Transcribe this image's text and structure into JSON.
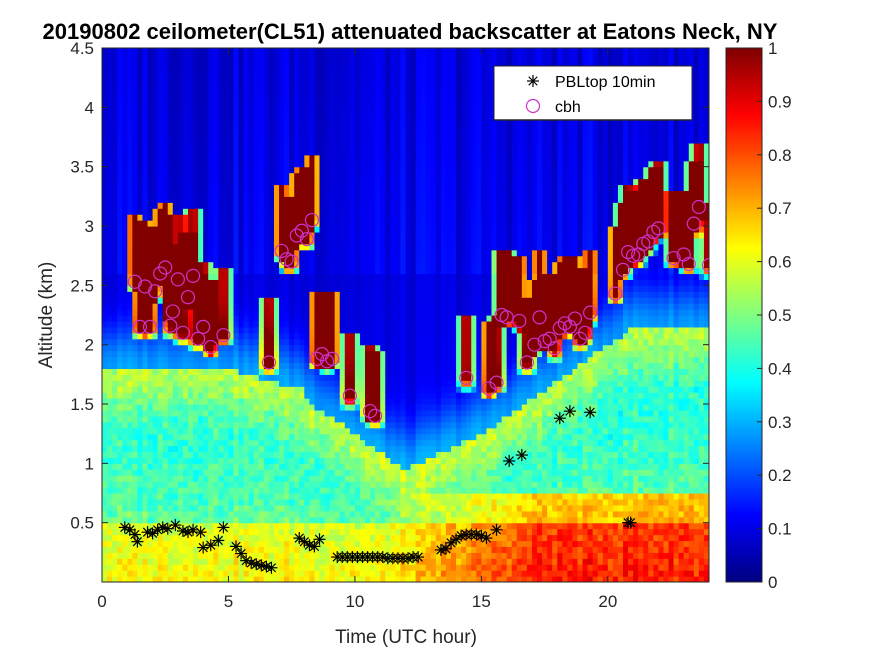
{
  "chart_data": {
    "type": "heatmap",
    "title": "20190802 ceilometer(CL51) attenuated backscatter at Eatons Neck, NY",
    "xlabel": "Time (UTC hour)",
    "ylabel": "Altitude (km)",
    "xlim": [
      0,
      24
    ],
    "ylim": [
      0,
      4.5
    ],
    "x_ticks": [
      "0",
      "5",
      "10",
      "15",
      "20"
    ],
    "y_ticks": [
      "0.5",
      "1",
      "1.5",
      "2",
      "2.5",
      "3",
      "3.5",
      "4",
      "4.5"
    ],
    "colorbar": {
      "range": [
        0,
        1
      ],
      "colormap": "jet",
      "ticks": [
        "0",
        "0.1",
        "0.2",
        "0.3",
        "0.4",
        "0.5",
        "0.6",
        "0.7",
        "0.8",
        "0.9",
        "1"
      ]
    },
    "legend": {
      "position": "top-right"
    },
    "series": [
      {
        "name": "PBLtop 10min",
        "marker": "asterisk",
        "color": "#000000",
        "points": [
          [
            0.9,
            0.46
          ],
          [
            1.1,
            0.44
          ],
          [
            1.3,
            0.4
          ],
          [
            1.4,
            0.34
          ],
          [
            1.8,
            0.42
          ],
          [
            2.0,
            0.41
          ],
          [
            2.2,
            0.44
          ],
          [
            2.4,
            0.46
          ],
          [
            2.6,
            0.45
          ],
          [
            2.9,
            0.48
          ],
          [
            3.2,
            0.43
          ],
          [
            3.4,
            0.42
          ],
          [
            3.6,
            0.44
          ],
          [
            3.9,
            0.42
          ],
          [
            4.0,
            0.29
          ],
          [
            4.3,
            0.31
          ],
          [
            4.6,
            0.35
          ],
          [
            4.8,
            0.46
          ],
          [
            5.3,
            0.3
          ],
          [
            5.5,
            0.24
          ],
          [
            5.7,
            0.18
          ],
          [
            5.9,
            0.16
          ],
          [
            6.1,
            0.15
          ],
          [
            6.3,
            0.14
          ],
          [
            6.5,
            0.13
          ],
          [
            6.7,
            0.12
          ],
          [
            7.8,
            0.37
          ],
          [
            8.0,
            0.34
          ],
          [
            8.2,
            0.31
          ],
          [
            8.4,
            0.3
          ],
          [
            8.6,
            0.36
          ],
          [
            9.3,
            0.21
          ],
          [
            9.5,
            0.21
          ],
          [
            9.7,
            0.21
          ],
          [
            9.9,
            0.21
          ],
          [
            10.1,
            0.21
          ],
          [
            10.3,
            0.21
          ],
          [
            10.5,
            0.21
          ],
          [
            10.7,
            0.21
          ],
          [
            10.9,
            0.21
          ],
          [
            11.1,
            0.21
          ],
          [
            11.3,
            0.2
          ],
          [
            11.5,
            0.2
          ],
          [
            11.7,
            0.2
          ],
          [
            11.9,
            0.2
          ],
          [
            12.1,
            0.2
          ],
          [
            12.3,
            0.21
          ],
          [
            12.5,
            0.21
          ],
          [
            13.4,
            0.27
          ],
          [
            13.6,
            0.28
          ],
          [
            13.8,
            0.33
          ],
          [
            14.0,
            0.36
          ],
          [
            14.2,
            0.39
          ],
          [
            14.4,
            0.4
          ],
          [
            14.6,
            0.4
          ],
          [
            14.8,
            0.4
          ],
          [
            15.0,
            0.39
          ],
          [
            15.2,
            0.37
          ],
          [
            15.6,
            0.44
          ],
          [
            16.1,
            1.02
          ],
          [
            16.6,
            1.07
          ],
          [
            18.1,
            1.38
          ],
          [
            18.5,
            1.44
          ],
          [
            19.3,
            1.43
          ],
          [
            20.8,
            0.5
          ],
          [
            20.9,
            0.5
          ]
        ]
      },
      {
        "name": "cbh",
        "marker": "circle",
        "color": "#cc33cc",
        "points": [
          [
            1.3,
            2.53
          ],
          [
            1.5,
            2.15
          ],
          [
            1.7,
            2.49
          ],
          [
            1.9,
            2.15
          ],
          [
            2.1,
            2.45
          ],
          [
            2.3,
            2.6
          ],
          [
            2.5,
            2.65
          ],
          [
            2.7,
            2.16
          ],
          [
            2.8,
            2.28
          ],
          [
            3.0,
            2.55
          ],
          [
            3.2,
            2.1
          ],
          [
            3.4,
            2.4
          ],
          [
            3.6,
            2.58
          ],
          [
            3.8,
            2.05
          ],
          [
            4.0,
            2.15
          ],
          [
            4.3,
            1.98
          ],
          [
            4.8,
            2.08
          ],
          [
            6.6,
            1.85
          ],
          [
            7.1,
            2.79
          ],
          [
            7.3,
            2.72
          ],
          [
            7.5,
            2.7
          ],
          [
            7.7,
            2.92
          ],
          [
            7.9,
            2.96
          ],
          [
            8.1,
            2.89
          ],
          [
            8.3,
            3.05
          ],
          [
            8.5,
            1.88
          ],
          [
            8.7,
            1.92
          ],
          [
            8.9,
            1.86
          ],
          [
            9.1,
            1.88
          ],
          [
            9.8,
            1.57
          ],
          [
            10.6,
            1.44
          ],
          [
            10.8,
            1.4
          ],
          [
            14.4,
            1.72
          ],
          [
            15.3,
            1.63
          ],
          [
            15.6,
            1.68
          ],
          [
            15.8,
            2.25
          ],
          [
            16.0,
            2.23
          ],
          [
            16.5,
            2.2
          ],
          [
            16.8,
            1.85
          ],
          [
            17.1,
            2.0
          ],
          [
            17.3,
            2.23
          ],
          [
            17.5,
            2.03
          ],
          [
            17.7,
            2.05
          ],
          [
            17.9,
            1.97
          ],
          [
            18.1,
            2.14
          ],
          [
            18.3,
            2.18
          ],
          [
            18.5,
            2.15
          ],
          [
            18.7,
            2.22
          ],
          [
            18.9,
            2.05
          ],
          [
            19.1,
            2.1
          ],
          [
            19.3,
            2.27
          ],
          [
            20.3,
            2.43
          ],
          [
            20.6,
            2.63
          ],
          [
            20.8,
            2.78
          ],
          [
            21.0,
            2.75
          ],
          [
            21.2,
            2.76
          ],
          [
            21.4,
            2.85
          ],
          [
            21.6,
            2.87
          ],
          [
            21.8,
            2.95
          ],
          [
            22.0,
            2.98
          ],
          [
            22.6,
            2.73
          ],
          [
            23.0,
            2.76
          ],
          [
            23.2,
            2.68
          ],
          [
            23.4,
            3.02
          ],
          [
            23.6,
            3.16
          ],
          [
            24.0,
            2.67
          ]
        ]
      }
    ]
  }
}
